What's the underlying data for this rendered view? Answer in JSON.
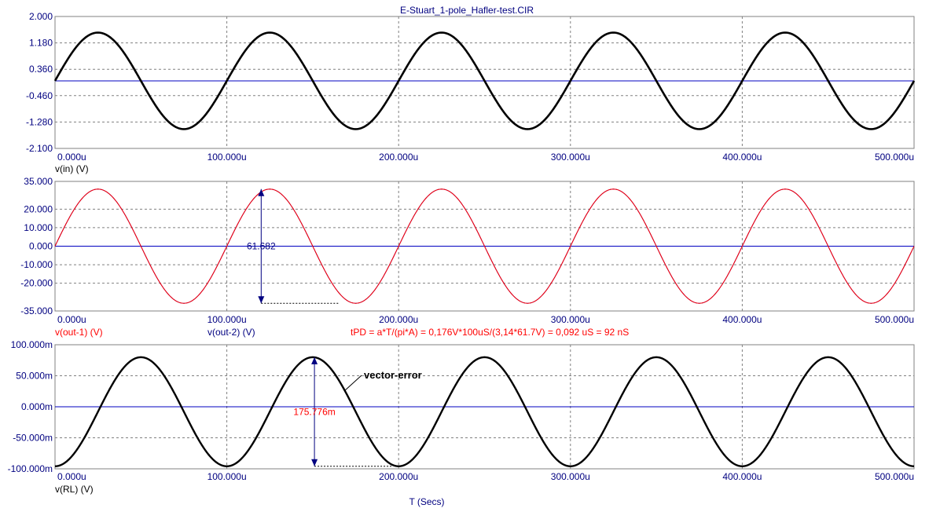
{
  "title": "E-Stuart_1-pole_Hafler-test.CIR",
  "xlabel": "T (Secs)",
  "x_ticks": [
    "0.000u",
    "100.000u",
    "200.000u",
    "300.000u",
    "400.000u",
    "500.000u"
  ],
  "colors": {
    "axis_text": "#000080",
    "grid": "#808080",
    "trace_black": "#000000",
    "trace_blue": "#0000c0",
    "annotation_red": "#ff0000"
  },
  "chart_data": [
    {
      "type": "line",
      "y_ticks": [
        "2.000",
        "1.180",
        "0.360",
        "-0.460",
        "-1.280",
        "-2.100"
      ],
      "ylim": [
        -2.1,
        2.0
      ],
      "x_range_us": [
        0,
        500
      ],
      "grid": true,
      "series": [
        {
          "name": "v(in) (V)",
          "color": "#000000",
          "shape": "sine",
          "amplitude": 1.5,
          "period_us": 100,
          "offset": 0,
          "phase_deg": 0
        }
      ],
      "zero_line": 0
    },
    {
      "type": "line",
      "y_ticks": [
        "35.000",
        "20.000",
        "10.000",
        "0.000",
        "-10.000",
        "-20.000",
        "-35.000"
      ],
      "ylim": [
        -35,
        35
      ],
      "x_range_us": [
        0,
        500
      ],
      "grid": true,
      "series": [
        {
          "name": "v(out-1) (V)",
          "color": "#ff0000",
          "shape": "sine",
          "amplitude": 30.84,
          "period_us": 100,
          "offset": 0,
          "phase_deg": 0
        },
        {
          "name": "v(out-2) (V)",
          "color": "#0000c0",
          "shape": "sine",
          "amplitude": 30.84,
          "period_us": 100,
          "offset": 0,
          "phase_deg": 0
        }
      ],
      "zero_line": 0,
      "measurement": {
        "label": "61.682",
        "x_us": 120,
        "y_top": 30.84,
        "y_bottom": -30.84
      },
      "annotation": "tPD = a*T/(pi*A) = 0,176V*100uS/(3,14*61.7V) = 0,092 uS = 92 nS"
    },
    {
      "type": "line",
      "y_ticks": [
        "100.000m",
        "50.000m",
        "0.000m",
        "-50.000m",
        "-100.000m"
      ],
      "ylim": [
        -100,
        100
      ],
      "x_range_us": [
        0,
        500
      ],
      "grid": true,
      "series": [
        {
          "name": "v(RL) (V)",
          "color": "#000000",
          "shape": "sine",
          "amplitude": 87.9,
          "period_us": 100,
          "offset": -8,
          "phase_deg": -90
        }
      ],
      "zero_line": 0,
      "measurement": {
        "label": "175.776m",
        "x_us": 151,
        "y_top": 79.9,
        "y_bottom": -95.9
      },
      "callout": "vector-error"
    }
  ]
}
